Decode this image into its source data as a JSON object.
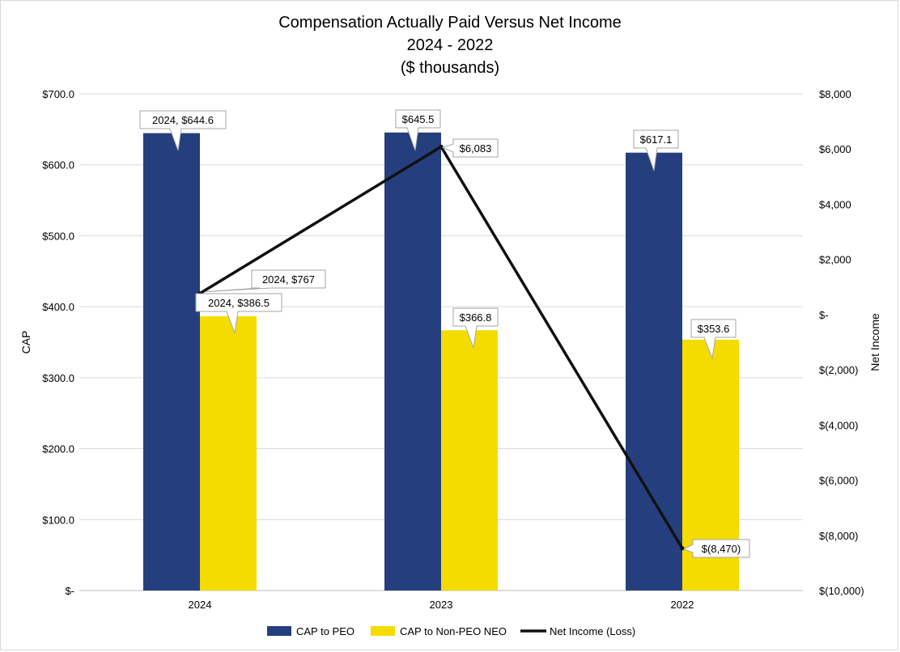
{
  "chart_data": {
    "type": "bar",
    "title": [
      "Compensation Actually Paid Versus Net Income",
      "2024 - 2022",
      "($ thousands)"
    ],
    "categories": [
      "2024",
      "2023",
      "2022"
    ],
    "ylabel": "CAP",
    "y2label": "Net Income",
    "ylim": [
      0,
      700
    ],
    "y2lim": [
      -10000,
      8000
    ],
    "yticks": [
      "$-",
      "$100.0",
      "$200.0",
      "$300.0",
      "$400.0",
      "$500.0",
      "$600.0",
      "$700.0"
    ],
    "y2ticks": [
      "$(10,000)",
      "$(8,000)",
      "$(6,000)",
      "$(4,000)",
      "$(2,000)",
      "$-",
      "$2,000",
      "$4,000",
      "$6,000",
      "$8,000"
    ],
    "grid": true,
    "legend_position": "bottom",
    "series": [
      {
        "name": "CAP to PEO",
        "type": "bar",
        "axis": "left",
        "color": "#253f7e",
        "values": [
          644.6,
          645.5,
          617.1
        ],
        "labels": [
          "2024,  $644.6",
          "$645.5",
          "$617.1"
        ]
      },
      {
        "name": "CAP to Non-PEO NEO",
        "type": "bar",
        "axis": "left",
        "color": "#f5dc00",
        "values": [
          386.5,
          366.8,
          353.6
        ],
        "labels": [
          "2024,  $386.5",
          "$366.8",
          "$353.6"
        ]
      },
      {
        "name": "Net Income (Loss)",
        "type": "line",
        "axis": "right",
        "color": "#111111",
        "values": [
          767,
          6083,
          -8470
        ],
        "labels": [
          "2024,  $767",
          "$6,083",
          "$(8,470)"
        ]
      }
    ]
  }
}
